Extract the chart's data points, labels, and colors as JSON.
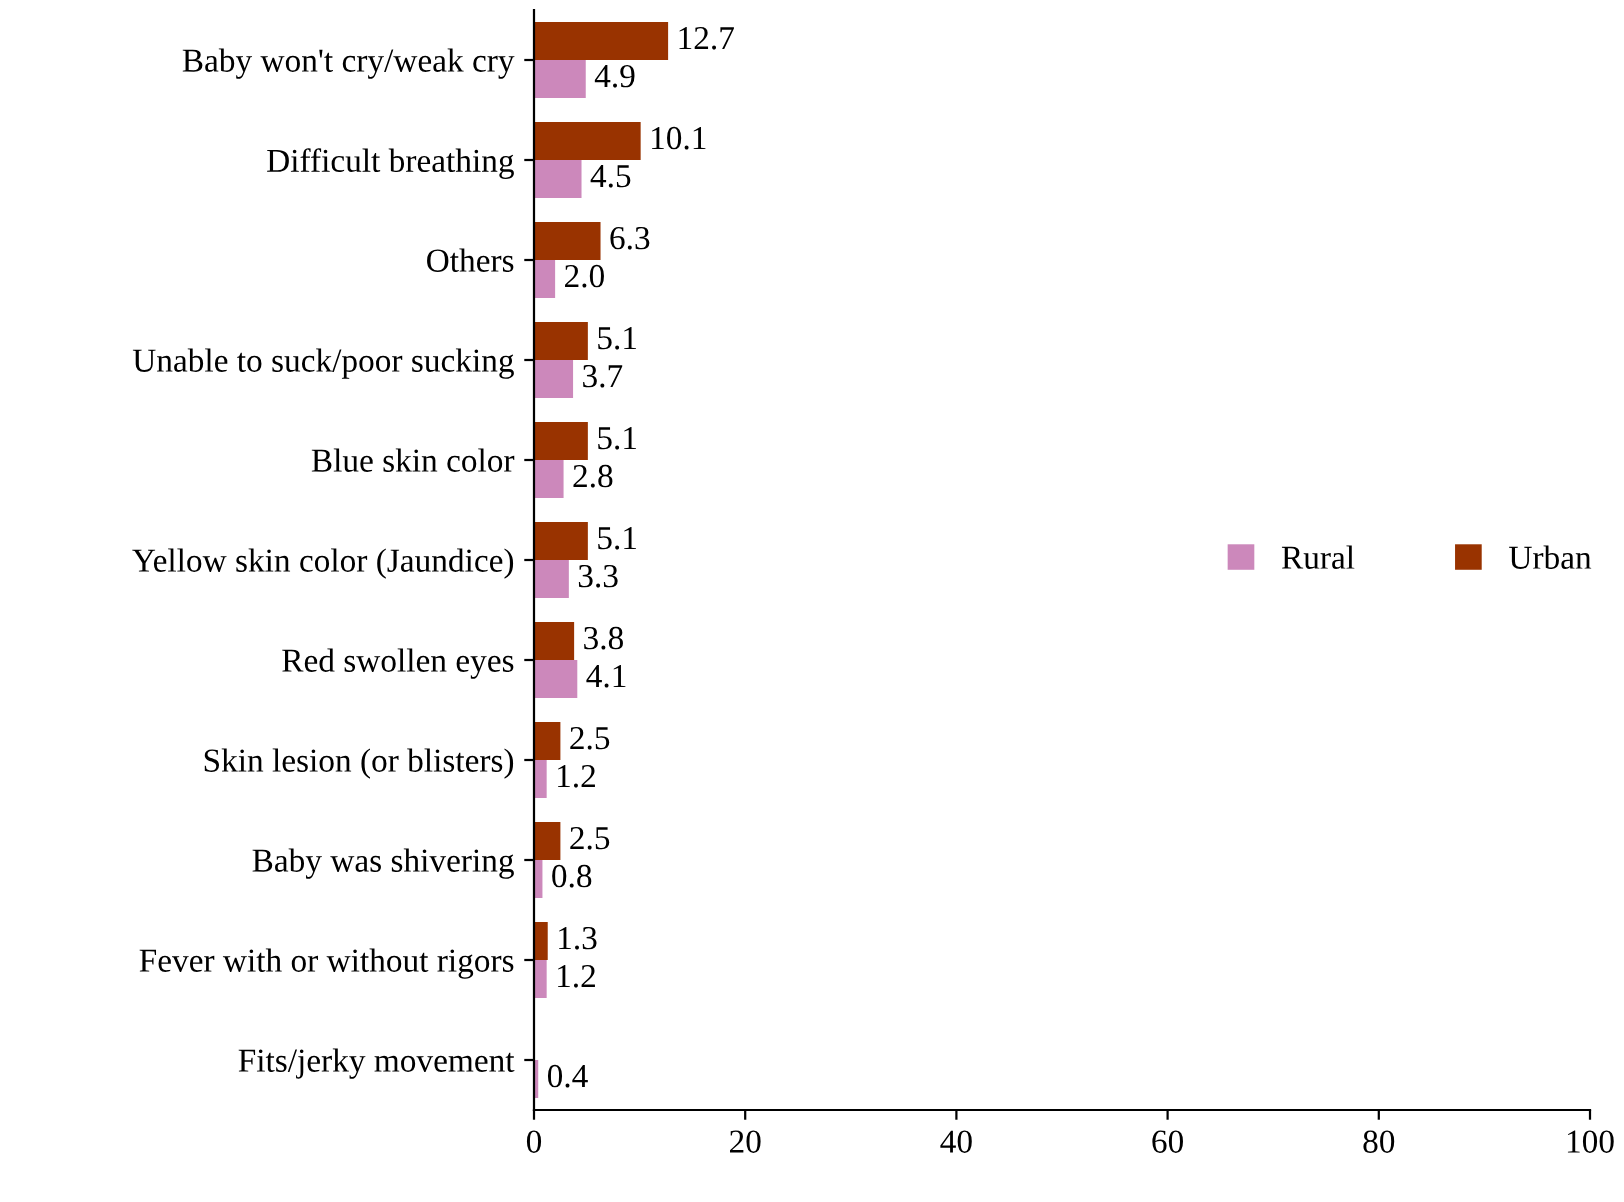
{
  "chart_data": {
    "type": "bar",
    "orientation": "horizontal",
    "categories": [
      "Baby won't cry/weak cry",
      "Difficult breathing",
      "Others",
      "Unable to suck/poor sucking",
      "Blue skin color",
      "Yellow skin color (Jaundice)",
      "Red swollen eyes",
      "Skin lesion (or blisters)",
      "Baby was shivering",
      "Fever with or without rigors",
      "Fits/jerky movement"
    ],
    "series": [
      {
        "name": "Urban",
        "color": "#993300",
        "values": [
          12.7,
          10.1,
          6.3,
          5.1,
          5.1,
          5.1,
          3.8,
          2.5,
          2.5,
          1.3,
          null
        ],
        "value_labels": [
          "12.7",
          "10.1",
          "6.3",
          "5.1",
          "5.1",
          "5.1",
          "3.8",
          "2.5",
          "2.5",
          "1.3",
          null
        ]
      },
      {
        "name": "Rural",
        "color": "#cc88bb",
        "values": [
          4.9,
          4.5,
          2.0,
          3.7,
          2.8,
          3.3,
          4.1,
          1.2,
          0.8,
          1.2,
          0.4
        ],
        "value_labels": [
          "4.9",
          "4.5",
          "2.0",
          "3.7",
          "2.8",
          "3.3",
          "4.1",
          "1.2",
          "0.8",
          "1.2",
          "0.4"
        ]
      }
    ],
    "xlim": [
      0,
      100
    ],
    "xticks": [
      0,
      20,
      40,
      60,
      80,
      100
    ],
    "grid": false,
    "legend": "right"
  }
}
